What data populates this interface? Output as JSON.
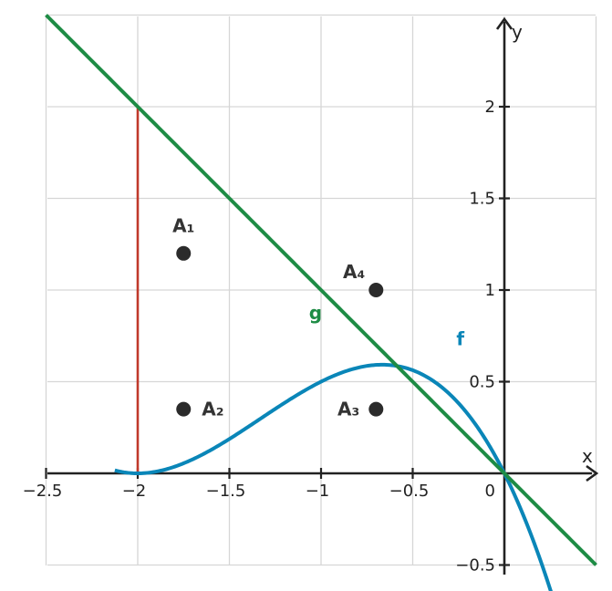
{
  "chart_data": {
    "type": "line",
    "xlim": [
      -2.5,
      0.5
    ],
    "ylim": [
      -0.5,
      2.5
    ],
    "grid": true,
    "axis_labels": {
      "x": "x",
      "y": "y"
    },
    "x_ticks": [
      {
        "value": -2.5,
        "label": "−2.5"
      },
      {
        "value": -2,
        "label": "−2"
      },
      {
        "value": -1.5,
        "label": "−1.5"
      },
      {
        "value": -1,
        "label": "−1"
      },
      {
        "value": -0.5,
        "label": "−0.5"
      }
    ],
    "y_ticks": [
      {
        "value": 2,
        "label": "2"
      },
      {
        "value": 1.5,
        "label": "1.5"
      },
      {
        "value": 1,
        "label": "1"
      },
      {
        "value": 0.5,
        "label": "0.5"
      },
      {
        "value": -0.5,
        "label": "−0.5"
      }
    ],
    "origin_label": "0",
    "series": [
      {
        "name": "f",
        "kind": "curve",
        "color": "#0a86b8",
        "formula": "y = -x^3/2 - 2*x^2 - 2*x",
        "x_range": [
          -2.125,
          0.26
        ],
        "label_at": {
          "x": -0.24,
          "y": 0.7
        }
      },
      {
        "name": "g",
        "kind": "line",
        "color": "#1e8c45",
        "formula": "y = -x",
        "x_range": [
          -2.5,
          0.5
        ],
        "label_at": {
          "x": -1.03,
          "y": 0.84
        }
      }
    ],
    "segments": [
      {
        "color": "#c0392b",
        "from": [
          -2,
          0
        ],
        "to": [
          -2,
          2
        ]
      }
    ],
    "points": [
      {
        "label": "A₁",
        "x": -1.75,
        "y": 1.2,
        "label_at": {
          "x": -1.75,
          "y": 1.35
        }
      },
      {
        "label": "A₂",
        "x": -1.75,
        "y": 0.35,
        "label_at": {
          "x": -1.59,
          "y": 0.35
        }
      },
      {
        "label": "A₃",
        "x": -0.7,
        "y": 0.35,
        "label_at": {
          "x": -0.85,
          "y": 0.35
        }
      },
      {
        "label": "A₄",
        "x": -0.7,
        "y": 1.0,
        "label_at": {
          "x": -0.82,
          "y": 1.1
        }
      }
    ],
    "point_color": "#2b2b2b"
  }
}
